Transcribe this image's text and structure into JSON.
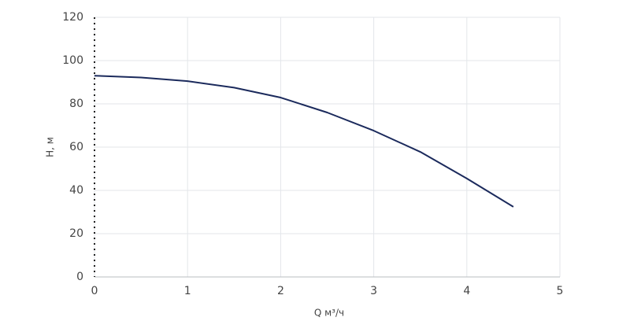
{
  "chart_data": {
    "type": "line",
    "x_label": "Q м³/ч",
    "y_label": "H, м",
    "x": [
      0,
      0.5,
      1,
      1.5,
      2,
      2.5,
      3,
      3.5,
      4,
      4.5
    ],
    "values": [
      93,
      92.2,
      90.5,
      87.5,
      82.9,
      76,
      67.6,
      57.8,
      45.5,
      32.4
    ],
    "color": "#1b2a5c",
    "xlim": [
      0,
      5
    ],
    "xticks": [
      0,
      1,
      2,
      3,
      4,
      5
    ],
    "ylim": [
      0,
      120
    ],
    "yticks": [
      0,
      20,
      40,
      60,
      80,
      100,
      120
    ],
    "grid": true
  }
}
